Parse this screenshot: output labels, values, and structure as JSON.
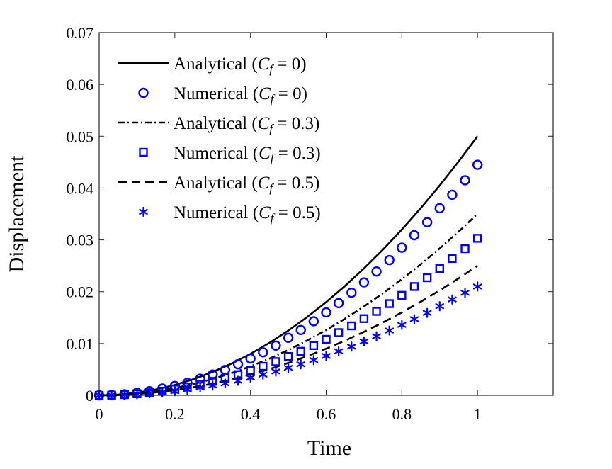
{
  "chart_data": {
    "type": "line",
    "xlabel": "Time",
    "ylabel": "Displacement",
    "xlim": [
      0,
      1.2
    ],
    "ylim": [
      0,
      0.07
    ],
    "xticks": [
      0,
      0.2,
      0.4,
      0.6,
      0.8,
      1
    ],
    "xtick_labels": [
      "0",
      "0.2",
      "0.4",
      "0.6",
      "0.8",
      "1"
    ],
    "yticks": [
      0,
      0.01,
      0.02,
      0.03,
      0.04,
      0.05,
      0.06,
      0.07
    ],
    "ytick_labels": [
      "0",
      "0.01",
      "0.02",
      "0.03",
      "0.04",
      "0.05",
      "0.06",
      "0.07"
    ],
    "grid": false,
    "legend_position": "top-left",
    "line_x": [
      0,
      0.05,
      0.1,
      0.15,
      0.2,
      0.25,
      0.3,
      0.35,
      0.4,
      0.45,
      0.5,
      0.55,
      0.6,
      0.65,
      0.7,
      0.75,
      0.8,
      0.85,
      0.9,
      0.95,
      1.0
    ],
    "marker_x": [
      0,
      0.033,
      0.067,
      0.1,
      0.133,
      0.167,
      0.2,
      0.233,
      0.267,
      0.3,
      0.333,
      0.367,
      0.4,
      0.433,
      0.467,
      0.5,
      0.533,
      0.567,
      0.6,
      0.633,
      0.667,
      0.7,
      0.733,
      0.767,
      0.8,
      0.833,
      0.867,
      0.9,
      0.933,
      0.967,
      1.0
    ],
    "series": [
      {
        "name": "Analytical (C_f = 0)",
        "label_prefix": "Analytical (",
        "label_var": "C",
        "label_sub": "f",
        "label_suffix": " = 0)",
        "kind": "line",
        "dash": "solid",
        "color": "#000000",
        "values": [
          0,
          0.000125,
          0.0005,
          0.001125,
          0.002,
          0.003125,
          0.0045,
          0.006125,
          0.008,
          0.010125,
          0.0125,
          0.015125,
          0.018,
          0.021125,
          0.0245,
          0.028125,
          0.032,
          0.036125,
          0.0405,
          0.045125,
          0.05
        ]
      },
      {
        "name": "Numerical (C_f = 0)",
        "label_prefix": "Numerical (",
        "label_var": "C",
        "label_sub": "f",
        "label_suffix": " = 0)",
        "kind": "marker",
        "marker": "circle",
        "color": "#0000ff",
        "values": [
          0,
          5e-05,
          0.0002,
          0.0005,
          0.0008,
          0.0013,
          0.0018,
          0.0024,
          0.0032,
          0.004,
          0.0049,
          0.006,
          0.0071,
          0.0083,
          0.0096,
          0.0111,
          0.0126,
          0.0143,
          0.016,
          0.0178,
          0.0198,
          0.0218,
          0.0239,
          0.0261,
          0.0285,
          0.0309,
          0.0334,
          0.0361,
          0.0387,
          0.0415,
          0.0445
        ]
      },
      {
        "name": "Analytical (C_f = 0.3)",
        "label_prefix": "Analytical (",
        "label_var": "C",
        "label_sub": "f",
        "label_suffix": " = 0.3)",
        "kind": "line",
        "dash": "dashdot",
        "color": "#000000",
        "values": [
          0,
          8.75e-05,
          0.00035,
          0.0007875,
          0.0014,
          0.0021875,
          0.00315,
          0.0042875,
          0.0056,
          0.0070875,
          0.00875,
          0.0105875,
          0.0126,
          0.0147875,
          0.01715,
          0.0196875,
          0.0224,
          0.0252875,
          0.02835,
          0.0315875,
          0.035
        ]
      },
      {
        "name": "Numerical (C_f = 0.3)",
        "label_prefix": "Numerical (",
        "label_var": "C",
        "label_sub": "f",
        "label_suffix": " = 0.3)",
        "kind": "marker",
        "marker": "square",
        "color": "#0000ff",
        "values": [
          0,
          3e-05,
          0.00014,
          0.0003,
          0.0005,
          0.0008,
          0.0012,
          0.0016,
          0.0021,
          0.0027,
          0.0033,
          0.004,
          0.0048,
          0.0056,
          0.0065,
          0.0075,
          0.0085,
          0.0096,
          0.0108,
          0.0121,
          0.0134,
          0.0148,
          0.0162,
          0.0177,
          0.0193,
          0.021,
          0.0227,
          0.0245,
          0.0264,
          0.0283,
          0.0303
        ]
      },
      {
        "name": "Analytical (C_f = 0.5)",
        "label_prefix": "Analytical (",
        "label_var": "C",
        "label_sub": "f",
        "label_suffix": " = 0.5)",
        "kind": "line",
        "dash": "dashed",
        "color": "#000000",
        "values": [
          0,
          6.25e-05,
          0.00025,
          0.0005625,
          0.001,
          0.0015625,
          0.00225,
          0.0030625,
          0.004,
          0.0050625,
          0.00625,
          0.0075625,
          0.009,
          0.0105625,
          0.01225,
          0.0140625,
          0.016,
          0.0180625,
          0.02025,
          0.0225625,
          0.025
        ]
      },
      {
        "name": "Numerical (C_f = 0.5)",
        "label_prefix": "Numerical (",
        "label_var": "C",
        "label_sub": "f",
        "label_suffix": " = 0.5)",
        "kind": "marker",
        "marker": "asterisk",
        "color": "#0000ff",
        "values": [
          0,
          2e-05,
          0.0001,
          0.0002,
          0.0004,
          0.0006,
          0.0008,
          0.0011,
          0.0015,
          0.0019,
          0.0023,
          0.0028,
          0.0034,
          0.004,
          0.0046,
          0.0053,
          0.006,
          0.0068,
          0.0076,
          0.0085,
          0.0094,
          0.0104,
          0.0114,
          0.0125,
          0.0136,
          0.0147,
          0.0159,
          0.0172,
          0.0185,
          0.0198,
          0.021
        ]
      }
    ]
  }
}
